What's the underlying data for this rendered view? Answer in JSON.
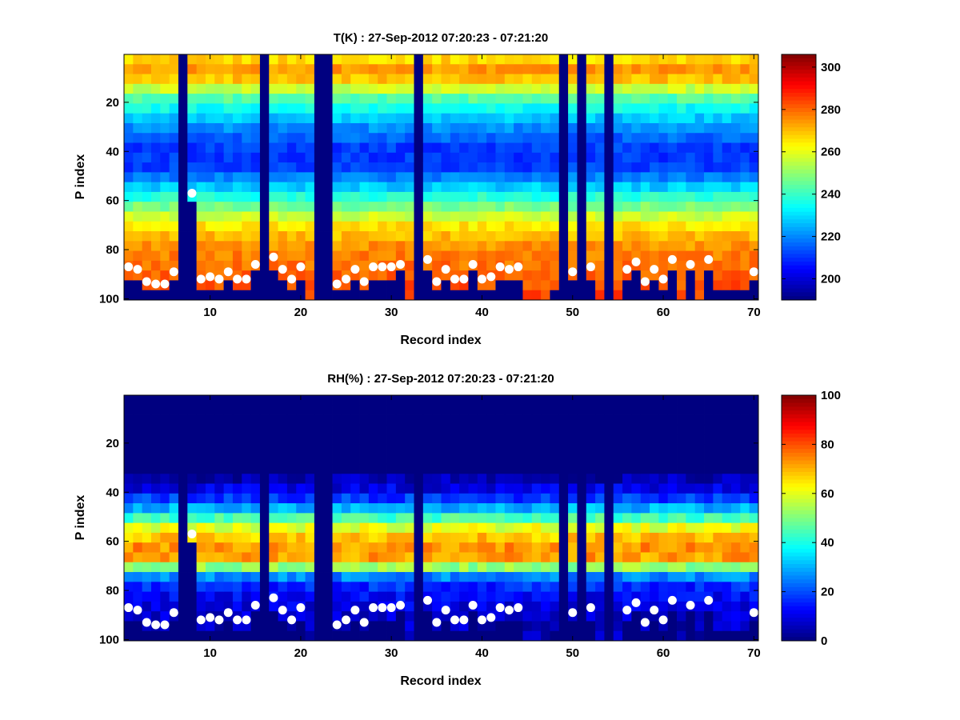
{
  "chart_data": [
    {
      "type": "heatmap",
      "title": "T(K) : 27-Sep-2012 07:20:23 - 07:21:20",
      "xlabel": "Record index",
      "ylabel": "P index",
      "xlim": [
        0.5,
        70.5
      ],
      "ylim": [
        0.5,
        100.5
      ],
      "y_direction": "reverse",
      "x_ticks": [
        10,
        20,
        30,
        40,
        50,
        60,
        70
      ],
      "y_ticks": [
        20,
        40,
        60,
        80,
        100
      ],
      "colorbar": {
        "min": 190,
        "max": 306,
        "ticks": [
          200,
          220,
          240,
          260,
          280,
          300
        ]
      },
      "nodata_value": 190,
      "gap_columns": [
        7,
        16,
        22,
        23,
        33,
        49,
        51,
        54
      ],
      "surface_points": [
        {
          "x": 1,
          "y": 87
        },
        {
          "x": 2,
          "y": 88
        },
        {
          "x": 3,
          "y": 93
        },
        {
          "x": 4,
          "y": 94
        },
        {
          "x": 5,
          "y": 94
        },
        {
          "x": 6,
          "y": 89
        },
        {
          "x": 8,
          "y": 57
        },
        {
          "x": 9,
          "y": 92
        },
        {
          "x": 10,
          "y": 91
        },
        {
          "x": 11,
          "y": 92
        },
        {
          "x": 12,
          "y": 89
        },
        {
          "x": 13,
          "y": 92
        },
        {
          "x": 14,
          "y": 92
        },
        {
          "x": 15,
          "y": 86
        },
        {
          "x": 17,
          "y": 83
        },
        {
          "x": 18,
          "y": 88
        },
        {
          "x": 19,
          "y": 92
        },
        {
          "x": 20,
          "y": 87
        },
        {
          "x": 24,
          "y": 94
        },
        {
          "x": 25,
          "y": 92
        },
        {
          "x": 26,
          "y": 88
        },
        {
          "x": 27,
          "y": 93
        },
        {
          "x": 28,
          "y": 87
        },
        {
          "x": 29,
          "y": 87
        },
        {
          "x": 30,
          "y": 87
        },
        {
          "x": 31,
          "y": 86
        },
        {
          "x": 34,
          "y": 84
        },
        {
          "x": 35,
          "y": 93
        },
        {
          "x": 36,
          "y": 88
        },
        {
          "x": 37,
          "y": 92
        },
        {
          "x": 38,
          "y": 92
        },
        {
          "x": 39,
          "y": 86
        },
        {
          "x": 40,
          "y": 92
        },
        {
          "x": 41,
          "y": 91
        },
        {
          "x": 42,
          "y": 87
        },
        {
          "x": 43,
          "y": 88
        },
        {
          "x": 44,
          "y": 87
        },
        {
          "x": 50,
          "y": 89
        },
        {
          "x": 52,
          "y": 87
        },
        {
          "x": 56,
          "y": 88
        },
        {
          "x": 57,
          "y": 85
        },
        {
          "x": 58,
          "y": 93
        },
        {
          "x": 59,
          "y": 88
        },
        {
          "x": 60,
          "y": 92
        },
        {
          "x": 61,
          "y": 84
        },
        {
          "x": 63,
          "y": 86
        },
        {
          "x": 65,
          "y": 84
        },
        {
          "x": 70,
          "y": 89
        }
      ],
      "profile": [
        {
          "p": 1,
          "v": 262
        },
        {
          "p": 5,
          "v": 272
        },
        {
          "p": 9,
          "v": 276
        },
        {
          "p": 12,
          "v": 266
        },
        {
          "p": 20,
          "v": 240
        },
        {
          "p": 30,
          "v": 222
        },
        {
          "p": 40,
          "v": 210
        },
        {
          "p": 48,
          "v": 212
        },
        {
          "p": 55,
          "v": 228
        },
        {
          "p": 60,
          "v": 240
        },
        {
          "p": 65,
          "v": 252
        },
        {
          "p": 70,
          "v": 264
        },
        {
          "p": 75,
          "v": 270
        },
        {
          "p": 80,
          "v": 276
        },
        {
          "p": 90,
          "v": 280
        },
        {
          "p": 100,
          "v": 284
        }
      ]
    },
    {
      "type": "heatmap",
      "title": "RH(%) : 27-Sep-2012 07:20:23 - 07:21:20",
      "xlabel": "Record index",
      "ylabel": "P index",
      "xlim": [
        0.5,
        70.5
      ],
      "ylim": [
        0.5,
        100.5
      ],
      "y_direction": "reverse",
      "x_ticks": [
        10,
        20,
        30,
        40,
        50,
        60,
        70
      ],
      "y_ticks": [
        20,
        40,
        60,
        80,
        100
      ],
      "colorbar": {
        "min": 0,
        "max": 100,
        "ticks": [
          0,
          20,
          40,
          60,
          80,
          100
        ]
      },
      "nodata_value": 0,
      "gap_columns": [
        7,
        16,
        22,
        23,
        33,
        49,
        51,
        54
      ],
      "surface_points": [
        {
          "x": 1,
          "y": 87
        },
        {
          "x": 2,
          "y": 88
        },
        {
          "x": 3,
          "y": 93
        },
        {
          "x": 4,
          "y": 94
        },
        {
          "x": 5,
          "y": 94
        },
        {
          "x": 6,
          "y": 89
        },
        {
          "x": 8,
          "y": 57
        },
        {
          "x": 9,
          "y": 92
        },
        {
          "x": 10,
          "y": 91
        },
        {
          "x": 11,
          "y": 92
        },
        {
          "x": 12,
          "y": 89
        },
        {
          "x": 13,
          "y": 92
        },
        {
          "x": 14,
          "y": 92
        },
        {
          "x": 15,
          "y": 86
        },
        {
          "x": 17,
          "y": 83
        },
        {
          "x": 18,
          "y": 88
        },
        {
          "x": 19,
          "y": 92
        },
        {
          "x": 20,
          "y": 87
        },
        {
          "x": 24,
          "y": 94
        },
        {
          "x": 25,
          "y": 92
        },
        {
          "x": 26,
          "y": 88
        },
        {
          "x": 27,
          "y": 93
        },
        {
          "x": 28,
          "y": 87
        },
        {
          "x": 29,
          "y": 87
        },
        {
          "x": 30,
          "y": 87
        },
        {
          "x": 31,
          "y": 86
        },
        {
          "x": 34,
          "y": 84
        },
        {
          "x": 35,
          "y": 93
        },
        {
          "x": 36,
          "y": 88
        },
        {
          "x": 37,
          "y": 92
        },
        {
          "x": 38,
          "y": 92
        },
        {
          "x": 39,
          "y": 86
        },
        {
          "x": 40,
          "y": 92
        },
        {
          "x": 41,
          "y": 91
        },
        {
          "x": 42,
          "y": 87
        },
        {
          "x": 43,
          "y": 88
        },
        {
          "x": 44,
          "y": 87
        },
        {
          "x": 50,
          "y": 89
        },
        {
          "x": 52,
          "y": 87
        },
        {
          "x": 56,
          "y": 88
        },
        {
          "x": 57,
          "y": 85
        },
        {
          "x": 58,
          "y": 93
        },
        {
          "x": 59,
          "y": 88
        },
        {
          "x": 60,
          "y": 92
        },
        {
          "x": 61,
          "y": 84
        },
        {
          "x": 63,
          "y": 86
        },
        {
          "x": 65,
          "y": 84
        },
        {
          "x": 70,
          "y": 89
        }
      ],
      "profile": [
        {
          "p": 1,
          "v": 0
        },
        {
          "p": 30,
          "v": 0
        },
        {
          "p": 38,
          "v": 8
        },
        {
          "p": 44,
          "v": 20
        },
        {
          "p": 50,
          "v": 40
        },
        {
          "p": 55,
          "v": 60
        },
        {
          "p": 60,
          "v": 70
        },
        {
          "p": 66,
          "v": 76
        },
        {
          "p": 70,
          "v": 60
        },
        {
          "p": 74,
          "v": 28
        },
        {
          "p": 80,
          "v": 14
        },
        {
          "p": 90,
          "v": 8
        },
        {
          "p": 100,
          "v": 5
        }
      ]
    }
  ]
}
